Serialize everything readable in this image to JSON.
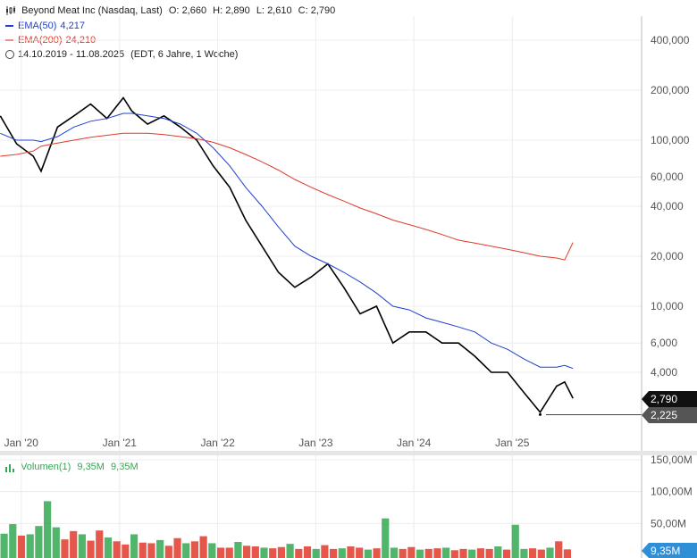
{
  "header": {
    "title": "Beyond Meat Inc (Nasdaq, Last)",
    "o_label": "O:",
    "o_value": "2,660",
    "h_label": "H:",
    "h_value": "2,890",
    "l_label": "L:",
    "l_value": "2,610",
    "c_label": "C:",
    "c_value": "2,790",
    "ema50_label": "EMA(50)",
    "ema50_value": "4,217",
    "ema50_color": "#1f3fd1",
    "ema200_label": "EMA(200)",
    "ema200_value": "24,210",
    "ema200_color": "#e0392b",
    "range": "14.10.2019 - 11.08.2025",
    "range_note": "(EDT, 6 Jahre, 1 Woche)",
    "chart_icon": "candle-chart-icon",
    "clock_icon": "clock-icon"
  },
  "price_tag": {
    "last": "2,790",
    "last_color": "#111111",
    "low": "2,225",
    "low_color": "#555555"
  },
  "volume_header": {
    "label": "Volumen(1)",
    "value1": "9,35M",
    "value2": "9,35M",
    "up_color": "#33a852",
    "down_color": "#e0392b"
  },
  "volume_tag": {
    "value": "9,35M",
    "color": "#2f8fd6"
  },
  "chart_data": [
    {
      "type": "line",
      "scale": "log",
      "x": [
        "2019-10",
        "2019-12",
        "2020-02",
        "2020-03",
        "2020-05",
        "2020-07",
        "2020-09",
        "2020-11",
        "2021-01",
        "2021-02",
        "2021-04",
        "2021-06",
        "2021-08",
        "2021-10",
        "2021-12",
        "2022-02",
        "2022-04",
        "2022-06",
        "2022-08",
        "2022-10",
        "2022-12",
        "2023-02",
        "2023-04",
        "2023-06",
        "2023-08",
        "2023-10",
        "2023-12",
        "2024-02",
        "2024-04",
        "2024-06",
        "2024-08",
        "2024-10",
        "2024-12",
        "2025-02",
        "2025-04",
        "2025-06",
        "2025-07",
        "2025-08"
      ],
      "series": [
        {
          "name": "Beyond Meat Inc",
          "values": [
            140,
            95,
            80,
            65,
            120,
            140,
            165,
            135,
            180,
            150,
            125,
            140,
            120,
            100,
            70,
            52,
            33,
            23,
            16,
            13,
            15,
            18,
            13,
            9,
            10,
            6,
            7,
            7,
            6,
            6,
            5,
            4,
            4,
            3,
            2.3,
            3.3,
            3.5,
            2.79
          ]
        },
        {
          "name": "EMA(50)",
          "values": [
            110,
            100,
            100,
            98,
            105,
            120,
            130,
            135,
            145,
            145,
            140,
            135,
            125,
            110,
            90,
            70,
            52,
            40,
            30,
            23,
            20,
            18,
            16,
            14,
            12,
            10,
            9.5,
            8.5,
            8,
            7.5,
            7,
            6,
            5.5,
            4.8,
            4.3,
            4.3,
            4.4,
            4.217
          ]
        },
        {
          "name": "EMA(200)",
          "values": [
            80,
            82,
            86,
            92,
            96,
            100,
            104,
            107,
            110,
            110,
            110,
            108,
            105,
            102,
            97,
            90,
            82,
            74,
            66,
            58,
            52,
            47,
            43,
            39,
            36,
            33,
            31,
            29,
            27,
            25,
            24,
            23,
            22,
            21,
            20,
            19.5,
            19,
            24.21
          ]
        }
      ],
      "y_ticks": [
        "400,000",
        "200,000",
        "100,000",
        "60,000",
        "40,000",
        "20,000",
        "10,000",
        "6,000",
        "4,000"
      ],
      "x_ticks": [
        "Jan '20",
        "Jan '21",
        "Jan '22",
        "Jan '23",
        "Jan '24",
        "Jan '25"
      ],
      "last": 2.79,
      "low": 2.225
    },
    {
      "type": "bar",
      "title": "Volumen(1)",
      "y_ticks": [
        "150,00M",
        "100,00M",
        "50,00M"
      ],
      "values_m": [
        34,
        49,
        31,
        33,
        46,
        85,
        44,
        25,
        38,
        33,
        23,
        39,
        28,
        22,
        17,
        33,
        20,
        19,
        24,
        15,
        27,
        19,
        22,
        30,
        19,
        12,
        12,
        21,
        15,
        14,
        12,
        11,
        13,
        18,
        10,
        14,
        10,
        16,
        10,
        11,
        14,
        12,
        9,
        11,
        58,
        12,
        10,
        13,
        9,
        10,
        11,
        12,
        8,
        10,
        9,
        11,
        10,
        14,
        9,
        48,
        10,
        11,
        9,
        12,
        22,
        9.35
      ],
      "last_m": 9.35
    }
  ]
}
